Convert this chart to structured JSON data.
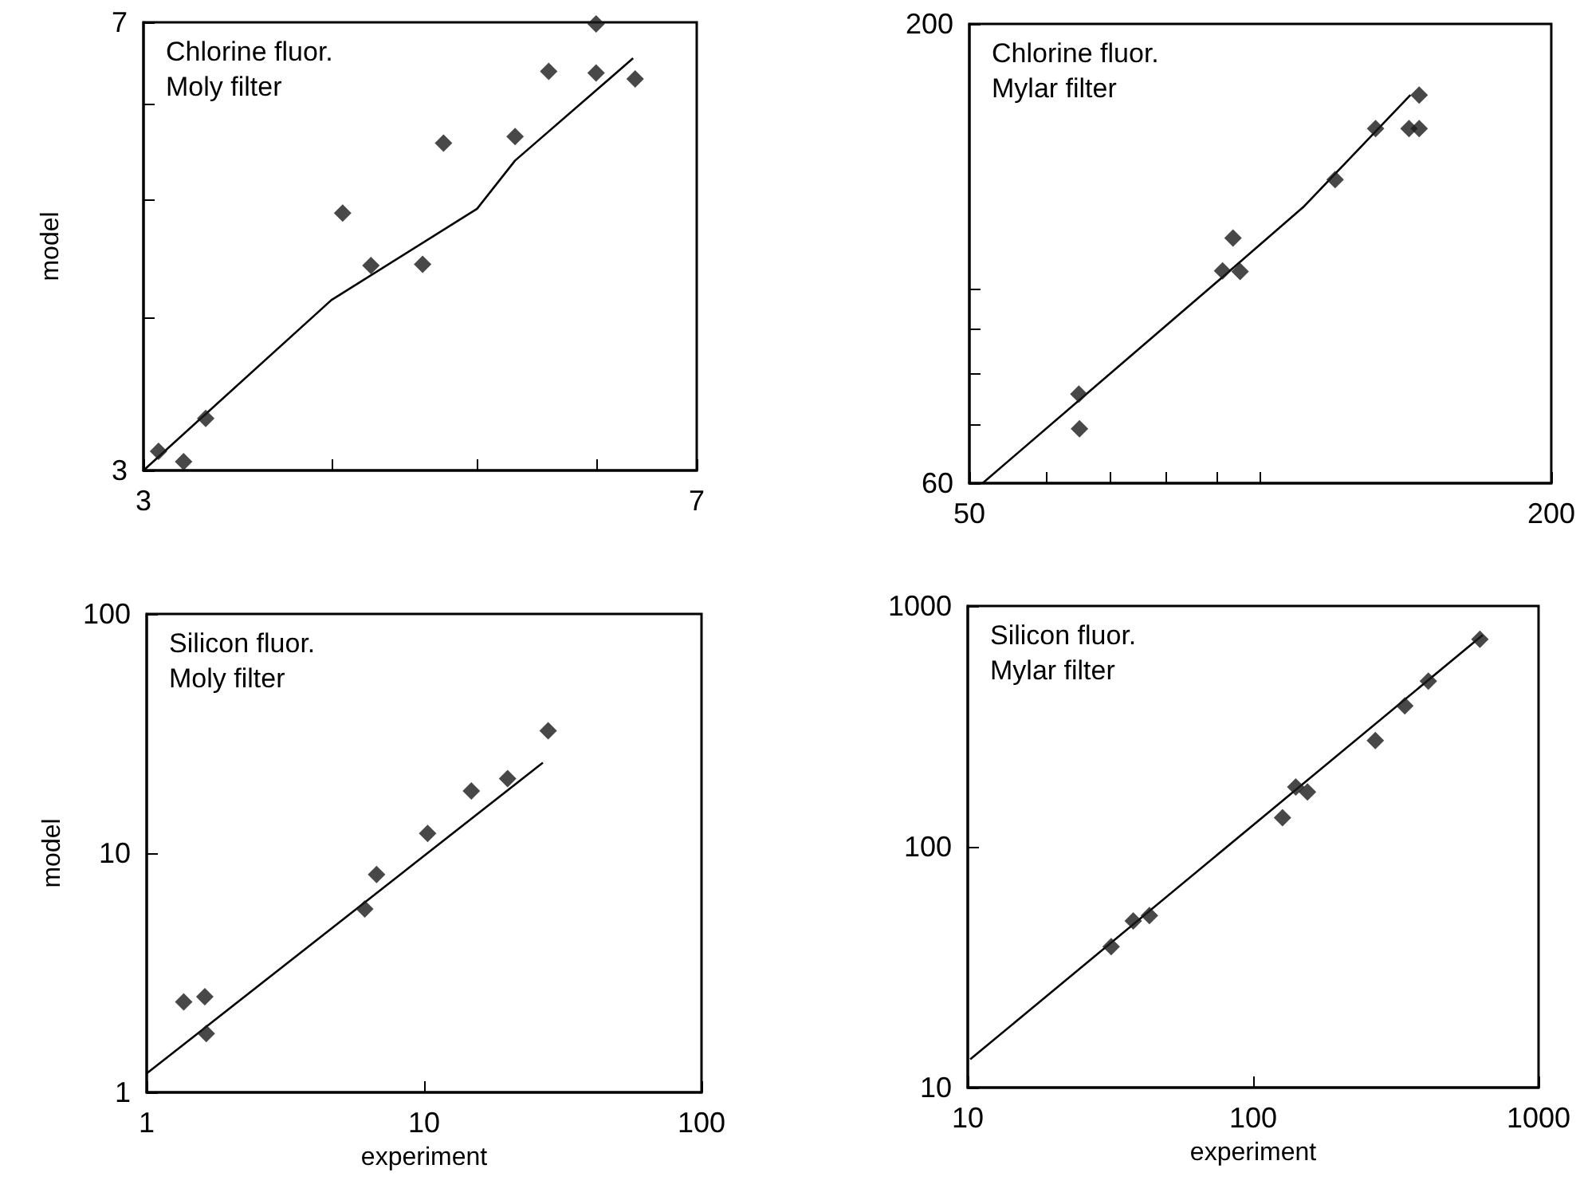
{
  "chart_data": [
    {
      "type": "scatter",
      "ylabel": "model",
      "annotations": [
        "Chlorine fluor.",
        "Moly filter"
      ],
      "log": "xy",
      "marker": "diamond",
      "xlim": [
        3,
        7
      ],
      "ylim": [
        3,
        7
      ],
      "xticks": [
        3,
        {
          "value": 4,
          "label": null
        },
        {
          "value": 5,
          "label": null
        },
        {
          "value": 6,
          "label": null
        },
        7
      ],
      "yticks": [
        3,
        {
          "value": 4,
          "label": null
        },
        {
          "value": 5,
          "label": null
        },
        {
          "value": 6,
          "label": null
        },
        7
      ],
      "series": [
        {
          "color": "#1a1a1a",
          "x": [
            3.07,
            3.19,
            3.3,
            4.07,
            4.25,
            4.6,
            4.75,
            5.3,
            5.58,
            6.0,
            6.0,
            6.37
          ],
          "values": [
            3.11,
            3.05,
            3.31,
            4.88,
            4.42,
            4.43,
            5.57,
            5.64,
            6.38,
            6.98,
            6.36,
            6.29
          ]
        },
        {
          "type": "line",
          "marker": "none",
          "color": "#000000",
          "x": [
            3,
            4,
            5,
            5.3,
            6.35
          ],
          "values": [
            3,
            4.14,
            4.92,
            5.39,
            6.54
          ]
        }
      ]
    },
    {
      "type": "scatter",
      "annotations": [
        "Chlorine fluor.",
        "Mylar filter"
      ],
      "log": "xy",
      "marker": "diamond",
      "xlim": [
        50,
        200
      ],
      "ylim": [
        60,
        200
      ],
      "xticks": [
        50,
        {
          "value": 60,
          "label": null
        },
        {
          "value": 70,
          "label": null
        },
        {
          "value": 80,
          "label": null
        },
        {
          "value": 90,
          "label": null
        },
        {
          "value": 100,
          "label": null
        },
        200
      ],
      "yticks": [
        60,
        {
          "value": 70,
          "label": null
        },
        {
          "value": 80,
          "label": null
        },
        {
          "value": 90,
          "label": null
        },
        {
          "value": 100,
          "label": null
        },
        200
      ],
      "series": [
        {
          "color": "#1a1a1a",
          "x": [
            64.9,
            65.0,
            91.4,
            95.3,
            93.7,
            119.5,
            131.6,
            142.5,
            146,
            146
          ],
          "values": [
            75.8,
            69.2,
            104.7,
            104.5,
            114.1,
            133,
            152,
            152,
            152,
            166
          ]
        },
        {
          "type": "line",
          "marker": "none",
          "color": "#000000",
          "x": [
            51.6,
            91.4,
            111,
            143
          ],
          "values": [
            60,
            103,
            124,
            166
          ]
        }
      ]
    },
    {
      "type": "scatter",
      "xlabel": "experiment",
      "ylabel": "model",
      "annotations": [
        "Silicon fluor.",
        "Moly filter"
      ],
      "log": "xy",
      "marker": "diamond",
      "xlim": [
        1,
        100
      ],
      "ylim": [
        1,
        100
      ],
      "xticks": [
        1,
        10,
        100
      ],
      "yticks": [
        1,
        10,
        100
      ],
      "series": [
        {
          "color": "#1a1a1a",
          "x": [
            1.36,
            1.62,
            1.64,
            6.11,
            6.74,
            10.3,
            14.8,
            20.0,
            28.0
          ],
          "values": [
            2.39,
            2.51,
            1.76,
            5.84,
            8.15,
            12.1,
            18.2,
            20.5,
            32.5
          ]
        },
        {
          "type": "line",
          "marker": "none",
          "color": "#000000",
          "x": [
            1,
            26.8
          ],
          "values": [
            1.2,
            23.9
          ]
        }
      ]
    },
    {
      "type": "scatter",
      "xlabel": "experiment",
      "annotations": [
        "Silicon fluor.",
        "Mylar filter"
      ],
      "log": "xy",
      "marker": "diamond",
      "xlim": [
        10,
        1000
      ],
      "ylim": [
        10,
        1000
      ],
      "xticks": [
        10,
        100,
        1000
      ],
      "yticks": [
        10,
        100,
        1000
      ],
      "series": [
        {
          "color": "#1a1a1a",
          "x": [
            31.8,
            38.0,
            43.3,
            126.7,
            141,
            155,
            268,
            340,
            411,
            623
          ],
          "values": [
            38.5,
            49.2,
            51.8,
            132,
            177,
            169,
            276,
            385,
            487,
            727
          ]
        },
        {
          "type": "line",
          "marker": "none",
          "color": "#000000",
          "x": [
            10.2,
            637
          ],
          "values": [
            13.1,
            757
          ]
        }
      ]
    }
  ]
}
